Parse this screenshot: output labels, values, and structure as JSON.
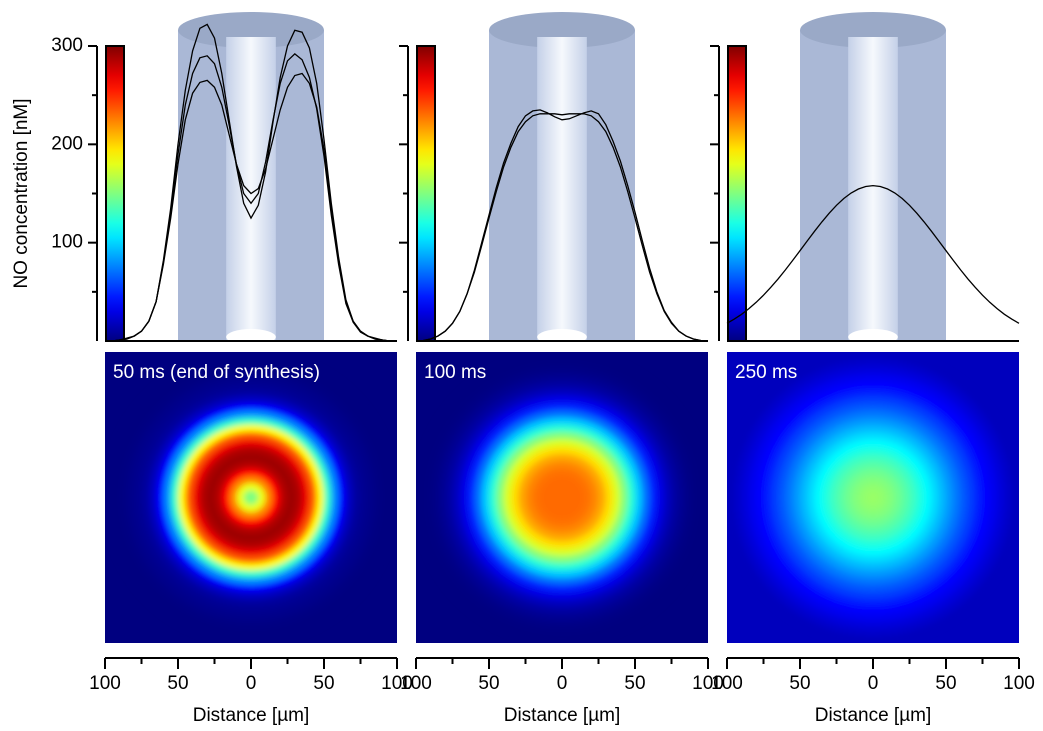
{
  "chart_data": [
    {
      "type": "line",
      "title": "50 ms (end of synthesis)",
      "ylabel": "NO concentration [nM]",
      "xlabel": "Distance [µm]",
      "colormap": "jet",
      "ytick_labels": true,
      "x": [
        -100,
        -95,
        -90,
        -85,
        -80,
        -75,
        -70,
        -65,
        -60,
        -55,
        -50,
        -45,
        -40,
        -35,
        -30,
        -25,
        -20,
        -15,
        -10,
        -5,
        0,
        5,
        10,
        15,
        20,
        25,
        30,
        35,
        40,
        45,
        50,
        55,
        60,
        65,
        70,
        75,
        80,
        85,
        90,
        95,
        100
      ],
      "series": [
        {
          "color": "#000000",
          "values": [
            0,
            0,
            1,
            3,
            5,
            10,
            20,
            40,
            80,
            130,
            190,
            240,
            272,
            288,
            290,
            282,
            258,
            220,
            180,
            150,
            140,
            150,
            182,
            224,
            262,
            285,
            292,
            286,
            268,
            236,
            188,
            128,
            78,
            38,
            19,
            9,
            5,
            3,
            1,
            0,
            0
          ]
        },
        {
          "color": "#000000",
          "values": [
            0,
            0,
            1,
            2,
            5,
            10,
            20,
            40,
            82,
            135,
            200,
            255,
            295,
            318,
            322,
            308,
            272,
            225,
            178,
            140,
            125,
            138,
            172,
            222,
            268,
            300,
            316,
            314,
            298,
            262,
            205,
            140,
            85,
            42,
            20,
            10,
            5,
            2,
            1,
            0,
            0
          ]
        },
        {
          "color": "#000000",
          "values": [
            0,
            0,
            1,
            2,
            5,
            10,
            20,
            40,
            78,
            125,
            180,
            225,
            252,
            263,
            265,
            258,
            240,
            210,
            180,
            158,
            150,
            155,
            175,
            205,
            235,
            258,
            270,
            272,
            262,
            238,
            195,
            135,
            82,
            40,
            20,
            10,
            5,
            2,
            1,
            0,
            0
          ]
        }
      ],
      "xlim": [
        -100,
        100
      ],
      "xticks": [
        {
          "value": -100,
          "label": "100"
        },
        {
          "value": -50,
          "label": "50"
        },
        0,
        50,
        100
      ],
      "xminorticks": [
        -75,
        -25,
        25,
        75
      ],
      "ylim": [
        0,
        300
      ],
      "yticks": [
        100,
        200,
        300
      ],
      "yminorticks": [
        50,
        150,
        250
      ]
    },
    {
      "type": "line",
      "title": "100 ms",
      "xlabel": "Distance [µm]",
      "colormap": "jet",
      "ytick_labels": false,
      "x": [
        -100,
        -95,
        -90,
        -85,
        -80,
        -75,
        -70,
        -65,
        -60,
        -55,
        -50,
        -45,
        -40,
        -35,
        -30,
        -25,
        -20,
        -15,
        -10,
        -5,
        0,
        5,
        10,
        15,
        20,
        25,
        30,
        35,
        40,
        45,
        50,
        55,
        60,
        65,
        70,
        75,
        80,
        85,
        90,
        95,
        100
      ],
      "series": [
        {
          "color": "#000000",
          "values": [
            0,
            0.5,
            2,
            5,
            10,
            18,
            30,
            48,
            70,
            97,
            125,
            152,
            177,
            197,
            213,
            223,
            229,
            231,
            231,
            231,
            230,
            231,
            231,
            231,
            229,
            223,
            213,
            197,
            177,
            152,
            125,
            97,
            70,
            48,
            30,
            18,
            10,
            5,
            2,
            0.5,
            0
          ]
        },
        {
          "color": "#000000",
          "values": [
            0,
            0.5,
            2,
            5,
            10,
            18,
            30,
            48,
            72,
            100,
            128,
            156,
            181,
            201,
            218,
            229,
            234,
            235,
            232,
            228,
            225,
            226,
            229,
            232,
            234,
            231,
            220,
            203,
            183,
            158,
            131,
            102,
            74,
            50,
            31,
            19,
            10,
            5,
            2,
            0.5,
            0
          ]
        }
      ],
      "xlim": [
        -100,
        100
      ],
      "xticks": [
        {
          "value": -100,
          "label": "100"
        },
        {
          "value": -50,
          "label": "50"
        },
        0,
        50,
        100
      ],
      "xminorticks": [
        -75,
        -25,
        25,
        75
      ],
      "ylim": [
        0,
        300
      ],
      "yticks": [
        100,
        200,
        300
      ],
      "yminorticks": [
        50,
        150,
        250
      ]
    },
    {
      "type": "line",
      "title": "250 ms",
      "xlabel": "Distance [µm]",
      "colormap": "jet",
      "ytick_labels": false,
      "x": [
        -100,
        -95,
        -90,
        -85,
        -80,
        -75,
        -70,
        -65,
        -60,
        -55,
        -50,
        -45,
        -40,
        -35,
        -30,
        -25,
        -20,
        -15,
        -10,
        -5,
        0,
        5,
        10,
        15,
        20,
        25,
        30,
        35,
        40,
        45,
        50,
        55,
        60,
        65,
        70,
        75,
        80,
        85,
        90,
        95,
        100
      ],
      "series": [
        {
          "color": "#000000",
          "values": [
            18,
            22.3,
            27.2,
            32.9,
            39.4,
            46.6,
            54.6,
            63.2,
            72.3,
            82,
            91.8,
            101.8,
            111.7,
            121.1,
            130,
            138,
            144.9,
            150.5,
            154.6,
            157.1,
            158,
            157.1,
            154.6,
            150.5,
            144.9,
            138,
            130,
            121.1,
            111.7,
            101.8,
            91.8,
            82,
            72.3,
            63.2,
            54.6,
            46.6,
            39.4,
            32.9,
            27.2,
            22.3,
            18
          ]
        }
      ],
      "xlim": [
        -100,
        100
      ],
      "xticks": [
        {
          "value": -100,
          "label": "100"
        },
        {
          "value": -50,
          "label": "50"
        },
        0,
        50,
        100
      ],
      "xminorticks": [
        -75,
        -25,
        25,
        75
      ],
      "ylim": [
        0,
        300
      ],
      "yticks": [
        100,
        200,
        300
      ],
      "yminorticks": [
        50,
        150,
        250
      ]
    }
  ]
}
